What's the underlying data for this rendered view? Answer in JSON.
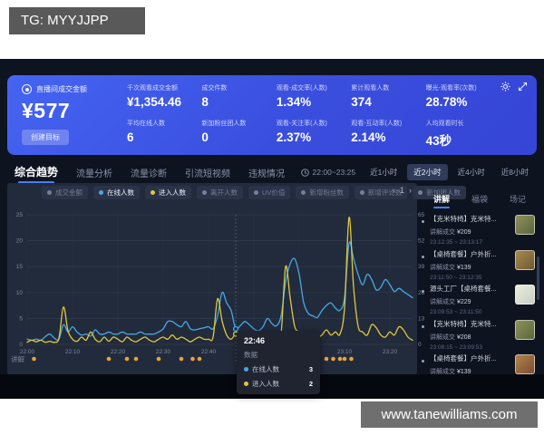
{
  "watermarks": {
    "top_left": "TG: MYYJJPP",
    "bottom_right": "www.tanewilliams.com"
  },
  "header": {
    "main_metric": {
      "label": "直播间成交金额",
      "value": "¥577",
      "button": "创建目标"
    },
    "metric_columns": [
      {
        "top": {
          "label": "千次观看成交金额",
          "value": "¥1,354.46"
        },
        "bottom": {
          "label": "平均在线人数",
          "value": "6"
        }
      },
      {
        "top": {
          "label": "成交件数",
          "value": "8"
        },
        "bottom": {
          "label": "新加粉丝团人数",
          "value": "0"
        }
      },
      {
        "top": {
          "label": "观看-成交率(人数)",
          "value": "1.34%"
        },
        "bottom": {
          "label": "观看-关注率(人数)",
          "value": "2.37%"
        }
      },
      {
        "top": {
          "label": "累计观看人数",
          "value": "374"
        },
        "bottom": {
          "label": "观看-互动率(人数)",
          "value": "2.14%"
        }
      },
      {
        "top": {
          "label": "曝光-观看率(次数)",
          "value": "28.78%"
        },
        "bottom": {
          "label": "人均观看时长",
          "value": "43秒"
        }
      }
    ],
    "icons": [
      "gear-icon",
      "expand-icon"
    ]
  },
  "tabs": [
    {
      "label": "综合趋势",
      "active": true
    },
    {
      "label": "流量分析",
      "active": false
    },
    {
      "label": "流量诊断",
      "active": false
    },
    {
      "label": "引流短视频",
      "active": false
    },
    {
      "label": "违规情况",
      "active": false
    }
  ],
  "controls": {
    "time_range": "22:00~23:25",
    "range_buttons": [
      {
        "label": "近1小时",
        "active": false
      },
      {
        "label": "近2小时",
        "active": true
      },
      {
        "label": "近4小时",
        "active": false
      },
      {
        "label": "近8小时",
        "active": false
      }
    ]
  },
  "legend": [
    {
      "label": "成交金额",
      "dot": "#778098",
      "active": false
    },
    {
      "label": "在线人数",
      "dot": "#45a9e6",
      "active": true
    },
    {
      "label": "进入人数",
      "dot": "#e0c83e",
      "active": true
    },
    {
      "label": "离开人数",
      "dot": "#778098",
      "active": false
    },
    {
      "label": "UV价值",
      "dot": "#778098",
      "active": false
    },
    {
      "label": "新增粉丝数",
      "dot": "#778098",
      "active": false
    },
    {
      "label": "新增评论数",
      "dot": "#778098",
      "active": false
    },
    {
      "label": "新加团人数",
      "dot": "#778098",
      "active": false
    }
  ],
  "pagination": {
    "prev": "‹",
    "page": "1",
    "next": "›"
  },
  "tooltip": {
    "time": "22:46",
    "section": "数据",
    "rows": [
      {
        "label": "在线人数",
        "value": "3",
        "dot": "#45a9e6"
      },
      {
        "label": "进入人数",
        "value": "2",
        "dot": "#e0c83e"
      }
    ]
  },
  "chart_data": {
    "type": "line",
    "title": "综合趋势",
    "x_unit": "minutes after 22:00",
    "x_minutes_range": [
      0,
      85
    ],
    "x_tick_labels": [
      "22:00",
      "22:10",
      "22:20",
      "22:30",
      "22:40",
      "22:50",
      "23:00",
      "23:10",
      "23:20"
    ],
    "left_axis": {
      "ticks": [
        0,
        5,
        10,
        15,
        20,
        25
      ],
      "max": 25
    },
    "right_axis": {
      "ticks": [
        0,
        13,
        26,
        39,
        52,
        65
      ],
      "max": 65
    },
    "grid": true,
    "hover": {
      "minute": 46,
      "time": "22:46",
      "values": [
        3,
        2
      ]
    },
    "series": [
      {
        "name": "在线人数",
        "color": "#45a9e6",
        "values": [
          1,
          0.8,
          1,
          0.8,
          1.5,
          2,
          1.2,
          1,
          3.8,
          2.4,
          3.4,
          2.4,
          1.8,
          2,
          1.6,
          2.8,
          2,
          2,
          2.4,
          2,
          2,
          2.4,
          2,
          2,
          2,
          2.4,
          2,
          2,
          2,
          2.4,
          3,
          4.4,
          4.4,
          3.8,
          3.4,
          4.4,
          3,
          2.8,
          3,
          3.2,
          3.4,
          3,
          5.5,
          10,
          8,
          6.5,
          3,
          3.6,
          4.4,
          3.8,
          3,
          2.6,
          3.4,
          5,
          4,
          3.6,
          5.5,
          12,
          15.5,
          16.5,
          13.5,
          8,
          6,
          5.5,
          5.2,
          6.5,
          7.5,
          8,
          7,
          6.6,
          9,
          19.5,
          16.5,
          13.5,
          11.5,
          13.5,
          12.5,
          10.5,
          11,
          12.5,
          11.5,
          10.2,
          10.8,
          10.2,
          9.6,
          9
        ]
      },
      {
        "name": "进入人数",
        "color": "#e0c83e",
        "values": [
          0.4,
          0.8,
          0.5,
          0.8,
          0.4,
          0.6,
          0.4,
          1.2,
          7.2,
          2.6,
          1,
          0.6,
          1.4,
          0.8,
          2.4,
          1,
          0.5,
          1.4,
          0.6,
          1.4,
          1,
          0.5,
          1.4,
          0.8,
          0.5,
          1,
          1.4,
          0.8,
          0.5,
          1,
          1.4,
          1,
          1.8,
          1,
          1.4,
          1,
          0.5,
          1,
          1.4,
          1,
          1,
          1.4,
          8.8,
          4.5,
          1.8,
          1,
          2,
          1,
          1.4,
          1,
          1.4,
          1,
          1.8,
          2.4,
          1.4,
          1,
          2,
          15,
          9,
          3.5,
          2.4,
          1.8,
          1.4,
          2.4,
          1.4,
          1.8,
          2.8,
          1.8,
          2.4,
          2,
          7,
          24.5,
          11,
          3.5,
          2.4,
          1.8,
          3.8,
          3.2,
          1.8,
          1.4,
          2.4,
          1.8,
          3.4,
          2.8,
          1.4,
          0.8
        ]
      }
    ]
  },
  "explain_track": {
    "label": "讲解",
    "dot_color": "#e8a23c",
    "dot_minutes": [
      1.5,
      18,
      22,
      24,
      29,
      34,
      36.5,
      38,
      57.5,
      59,
      62,
      66,
      67.5,
      69,
      70,
      71.5
    ]
  },
  "right_panel": {
    "tabs": [
      {
        "label": "讲解",
        "active": true
      },
      {
        "label": "福袋",
        "active": false
      },
      {
        "label": "场记",
        "active": false
      }
    ],
    "deal_label": "讲解成交",
    "items": [
      {
        "title": "【克米特椅】克米特...",
        "price": "¥209",
        "time": "23:12:35 ~ 23:13:17",
        "thumb": [
          "#8f9158",
          "#5a6540"
        ]
      },
      {
        "title": "【桌椅套餐】户外折...",
        "price": "¥139",
        "time": "23:11:50 ~ 23:12:35",
        "thumb": [
          "#a8894e",
          "#6d5a33"
        ]
      },
      {
        "title": "源头工厂【桌椅套餐...",
        "price": "¥229",
        "time": "23:09:53 ~ 23:11:50",
        "thumb": [
          "#eceddc",
          "#c8cdc4"
        ]
      },
      {
        "title": "【克米特椅】克米特...",
        "price": "¥208",
        "time": "23:08:15 ~ 23:09:53",
        "thumb": [
          "#8f9158",
          "#5a6540"
        ]
      },
      {
        "title": "【桌椅套餐】户外折...",
        "price": "¥139",
        "time": "",
        "thumb": [
          "#b3824a",
          "#7a4e35"
        ]
      }
    ]
  }
}
